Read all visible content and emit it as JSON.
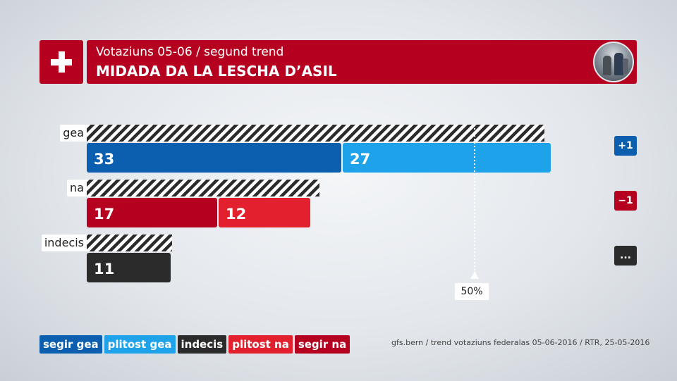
{
  "header": {
    "subtitle": "Votaziuns 05-06 / segund trend",
    "title": "MIDADA DA LA LESCHA D’ASIL"
  },
  "chart_data": {
    "type": "bar",
    "orientation": "horizontal",
    "stacked": true,
    "categories": [
      "gea",
      "na",
      "indecis"
    ],
    "rows": [
      {
        "category": "gea",
        "total_trend": 59,
        "segments": [
          {
            "name": "segir gea",
            "value": 33,
            "color": "#0b5fae"
          },
          {
            "name": "plitost gea",
            "value": 27,
            "color": "#1ea3eb"
          }
        ],
        "change": "+1",
        "change_color": "#0b5fae"
      },
      {
        "category": "na",
        "total_trend": 30,
        "segments": [
          {
            "name": "segir na",
            "value": 17,
            "color": "#b5001f"
          },
          {
            "name": "plitost na",
            "value": 12,
            "color": "#e3202e"
          }
        ],
        "change": "−1",
        "change_color": "#b5001f"
      },
      {
        "category": "indecis",
        "total_trend": 11,
        "segments": [
          {
            "name": "indecis",
            "value": 11,
            "color": "#2b2b2b"
          }
        ],
        "change": "...",
        "change_color": "#2b2b2b"
      }
    ],
    "reference_line": {
      "value": 50,
      "label": "50%"
    },
    "legend": [
      {
        "label": "segir gea",
        "color": "#0b5fae"
      },
      {
        "label": "plitost gea",
        "color": "#1ea3eb"
      },
      {
        "label": "indecis",
        "color": "#2b2b2b"
      },
      {
        "label": "plitost na",
        "color": "#e3202e"
      },
      {
        "label": "segir na",
        "color": "#b5001f"
      }
    ],
    "legend_position": "bottom-left"
  },
  "source": "gfs.bern / trend votaziuns federalas 05-06-2016 / RTR, 25-05-2016"
}
